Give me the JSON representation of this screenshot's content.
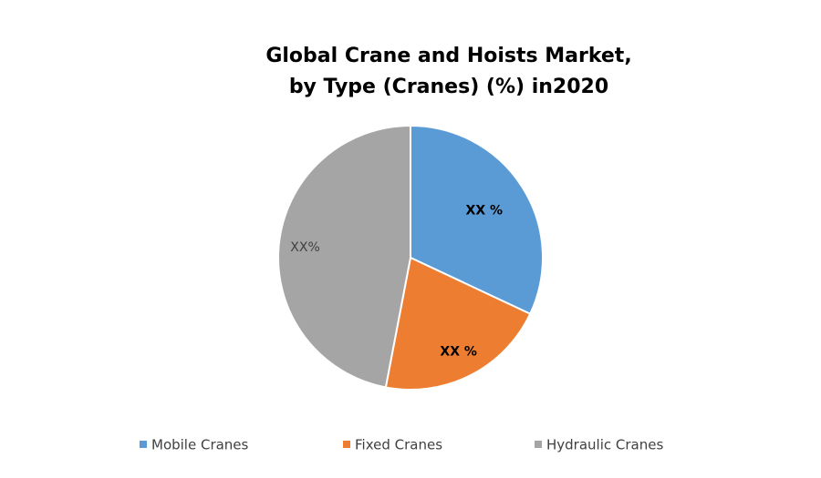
{
  "chart_data": {
    "type": "pie",
    "title": [
      "Global Crane and Hoists Market,",
      "by Type (Cranes) (%) in2020"
    ],
    "categories": [
      "Mobile Cranes",
      "Fixed Cranes",
      "Hydraulic Cranes"
    ],
    "values": [
      32,
      21,
      47
    ],
    "value_labels": [
      "XX %",
      "XX %",
      "XX%"
    ],
    "colors": [
      "#5b9bd5",
      "#ed7d31",
      "#a5a5a5"
    ]
  }
}
